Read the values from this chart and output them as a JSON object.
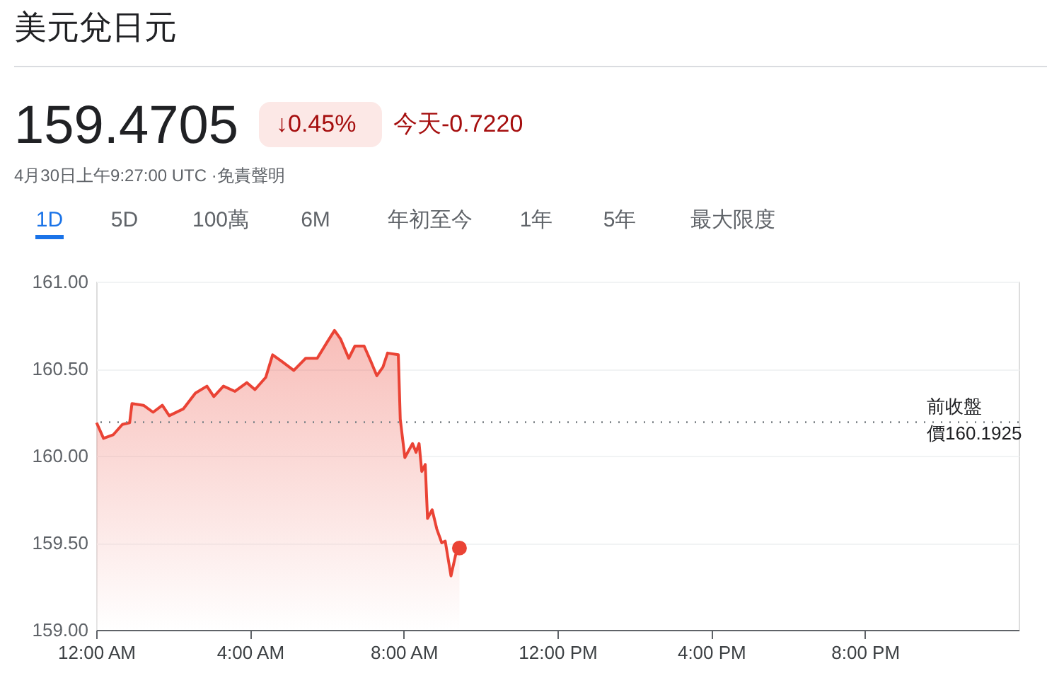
{
  "chart_data": {
    "type": "area",
    "title": "美元兌日元",
    "annotations": [
      "159.4705",
      "↓0.45%",
      "今天-0.7220",
      "4月30日上午9:27:00 UTC ·免責聲明",
      "1D",
      "5D",
      "100萬",
      "6M",
      "年初至今",
      "1年",
      "5年",
      "最大限度"
    ],
    "series": [
      {
        "color": "#ea4335",
        "marker": "none",
        "x": [
          0.01,
          0.19,
          0.44,
          0.68,
          0.87,
          0.93,
          1.23,
          1.48,
          1.72,
          1.9,
          2.27,
          2.58,
          2.88,
          3.06,
          3.31,
          3.61,
          3.92,
          4.13,
          4.41,
          4.59,
          4.84,
          5.14,
          5.45,
          5.75,
          6.0,
          6.2,
          6.36,
          6.57,
          6.73,
          6.97,
          7.15,
          7.3,
          7.46,
          7.58,
          7.86,
          7.91,
          8.03,
          8.23,
          8.32,
          8.4,
          8.47,
          8.56,
          8.62,
          8.74,
          8.86,
          8.99,
          9.08,
          9.23,
          9.35,
          9.45
        ],
        "values": [
          160.19,
          160.1,
          160.12,
          160.18,
          160.19,
          160.3,
          160.29,
          160.25,
          160.29,
          160.23,
          160.27,
          160.36,
          160.4,
          160.34,
          160.4,
          160.37,
          160.42,
          160.38,
          160.45,
          160.58,
          160.54,
          160.49,
          160.56,
          160.56,
          160.65,
          160.72,
          160.67,
          160.56,
          160.63,
          160.63,
          160.54,
          160.46,
          160.51,
          160.59,
          160.58,
          160.21,
          159.99,
          160.07,
          160.02,
          160.07,
          159.91,
          159.95,
          159.64,
          159.69,
          159.58,
          159.5,
          159.51,
          159.31,
          159.43,
          159.47
        ]
      },
      {
        "type": "scatter",
        "marker": "circle",
        "color": "#ea4335",
        "x": [
          9.45
        ],
        "values": [
          159.47
        ]
      }
    ],
    "xlim": [
      0,
      24
    ],
    "xticks": [
      {
        "value": 0,
        "label": "12:00 AM"
      },
      {
        "value": 4,
        "label": "4:00 AM"
      },
      {
        "value": 8,
        "label": "8:00 AM"
      },
      {
        "value": 12,
        "label": "12:00 PM"
      },
      {
        "value": 16,
        "label": "4:00 PM"
      },
      {
        "value": 20,
        "label": "8:00 PM"
      }
    ],
    "ylim": [
      159,
      161
    ],
    "yticks": [
      {
        "value": 159,
        "label": "159.00"
      },
      {
        "value": 159.5,
        "label": "159.50"
      },
      {
        "value": 160,
        "label": "160.00"
      },
      {
        "value": 160.5,
        "label": "160.50"
      },
      {
        "value": 161,
        "label": "161.00"
      }
    ],
    "grid": "y",
    "line_style": "solid",
    "ref_lines": [
      {
        "axis": "y",
        "value": 160.1925,
        "label": "前收盤價160.1925",
        "line_style": "dotted",
        "color": "#80868b"
      }
    ]
  }
}
